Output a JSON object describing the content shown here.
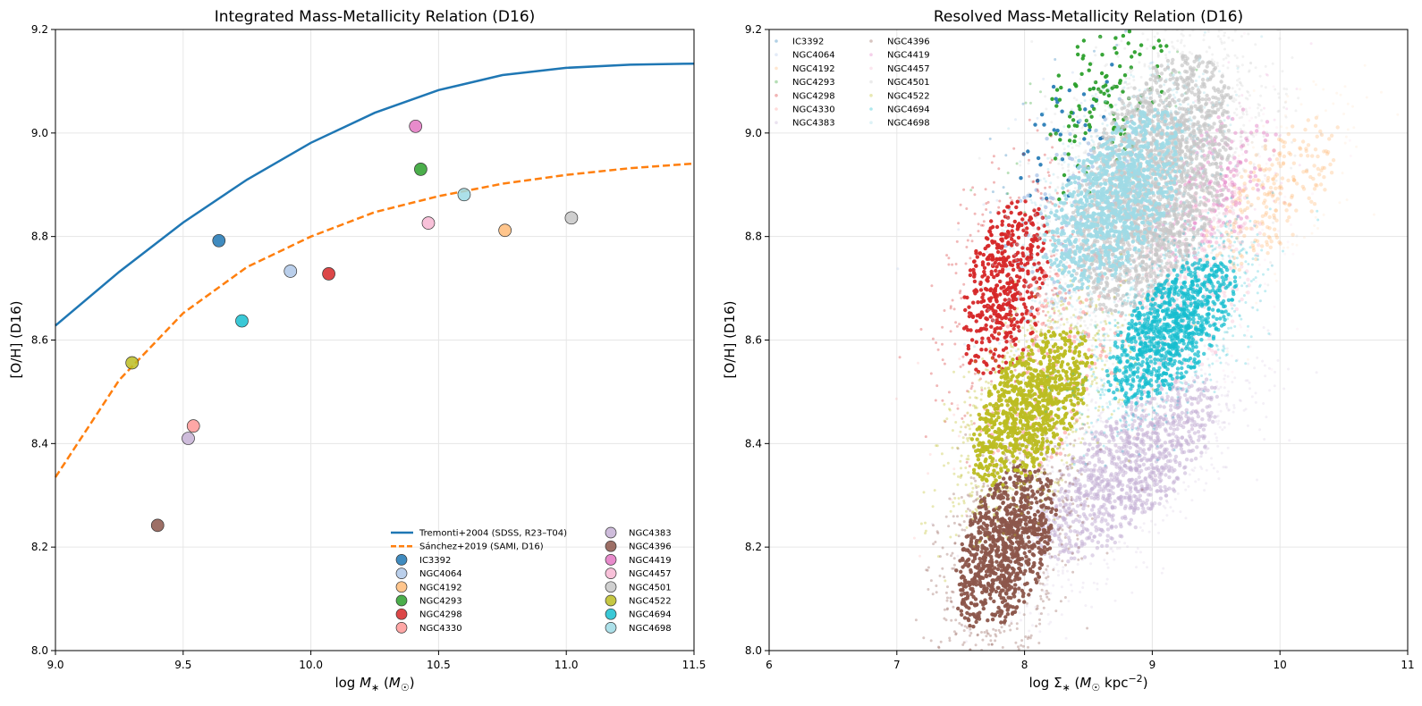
{
  "chart_data": [
    {
      "type": "scatter",
      "title": "Integrated Mass-Metallicity Relation (D16)",
      "xlabel": "log M* (M☉)",
      "ylabel": "[O/H] (D16)",
      "xlim": [
        9.0,
        11.5
      ],
      "ylim": [
        8.0,
        9.2
      ],
      "xticks": [
        "9.0",
        "9.5",
        "10.0",
        "10.5",
        "11.0",
        "11.5"
      ],
      "yticks": [
        "8.0",
        "8.2",
        "8.4",
        "8.6",
        "8.8",
        "9.0",
        "9.2"
      ],
      "grid": true,
      "legend_position": "lower-right",
      "lines": [
        {
          "name": "Tremonti+2004 (SDSS, R23–T04)",
          "style": "solid",
          "color": "#1f77b4",
          "x": [
            9.0,
            9.25,
            9.5,
            9.75,
            10.0,
            10.25,
            10.5,
            10.75,
            11.0,
            11.25,
            11.5
          ],
          "y": [
            8.628,
            8.732,
            8.827,
            8.91,
            8.981,
            9.039,
            9.083,
            9.112,
            9.126,
            9.132,
            9.134
          ]
        },
        {
          "name": "Sánchez+2019 (SAMI, D16)",
          "style": "dashed",
          "color": "#ff7f0e",
          "x": [
            9.0,
            9.25,
            9.5,
            9.75,
            10.0,
            10.25,
            10.5,
            10.75,
            11.0,
            11.25,
            11.5
          ],
          "y": [
            8.335,
            8.523,
            8.652,
            8.741,
            8.8,
            8.847,
            8.878,
            8.902,
            8.919,
            8.932,
            8.941
          ]
        }
      ],
      "points": [
        {
          "name": "IC3392",
          "x": 9.64,
          "y": 8.792,
          "color": "#1f77b4"
        },
        {
          "name": "NGC4064",
          "x": 9.92,
          "y": 8.733,
          "color": "#aec7e8"
        },
        {
          "name": "NGC4192",
          "x": 10.76,
          "y": 8.812,
          "color": "#ffbb78"
        },
        {
          "name": "NGC4293",
          "x": 10.43,
          "y": 8.93,
          "color": "#2ca02c"
        },
        {
          "name": "NGC4298",
          "x": 10.07,
          "y": 8.728,
          "color": "#d62728"
        },
        {
          "name": "NGC4330",
          "x": 9.54,
          "y": 8.434,
          "color": "#ff9896"
        },
        {
          "name": "NGC4383",
          "x": 9.52,
          "y": 8.41,
          "color": "#c5b0d5"
        },
        {
          "name": "NGC4396",
          "x": 9.4,
          "y": 8.242,
          "color": "#8c564b"
        },
        {
          "name": "NGC4419",
          "x": 10.41,
          "y": 9.013,
          "color": "#e377c2"
        },
        {
          "name": "NGC4457",
          "x": 10.46,
          "y": 8.826,
          "color": "#f7b6d2"
        },
        {
          "name": "NGC4501",
          "x": 11.02,
          "y": 8.836,
          "color": "#c7c7c7"
        },
        {
          "name": "NGC4522",
          "x": 9.3,
          "y": 8.556,
          "color": "#bcbd22"
        },
        {
          "name": "NGC4694",
          "x": 9.73,
          "y": 8.637,
          "color": "#17becf"
        },
        {
          "name": "NGC4698",
          "x": 10.6,
          "y": 8.881,
          "color": "#9edae5"
        }
      ]
    },
    {
      "type": "scatter",
      "title": "Resolved Mass-Metallicity Relation (D16)",
      "xlabel": "log Σ* (M☉ kpc⁻²)",
      "ylabel": "[O/H] (D16)",
      "xlim": [
        6,
        11
      ],
      "ylim": [
        8.0,
        9.2
      ],
      "xticks": [
        "6",
        "7",
        "8",
        "9",
        "10",
        "11"
      ],
      "yticks": [
        "8.0",
        "8.2",
        "8.4",
        "8.6",
        "8.8",
        "9.0",
        "9.2"
      ],
      "grid": true,
      "legend_position": "upper-left",
      "series": [
        {
          "name": "IC3392",
          "color": "#1f77b4",
          "cx": 8.35,
          "cy": 9.0,
          "sx": 0.3,
          "sy": 0.08,
          "n": 60,
          "strength": 0.9
        },
        {
          "name": "NGC4064",
          "color": "#aec7e8",
          "cx": 8.4,
          "cy": 8.85,
          "sx": 0.4,
          "sy": 0.12,
          "n": 150,
          "strength": 0.8
        },
        {
          "name": "NGC4192",
          "color": "#ffbb78",
          "cx": 9.95,
          "cy": 8.88,
          "sx": 0.35,
          "sy": 0.07,
          "n": 320,
          "strength": 0.35
        },
        {
          "name": "NGC4293",
          "color": "#2ca02c",
          "cx": 8.6,
          "cy": 9.05,
          "sx": 0.35,
          "sy": 0.1,
          "n": 160,
          "strength": 0.95
        },
        {
          "name": "NGC4298",
          "color": "#d62728",
          "cx": 7.85,
          "cy": 8.7,
          "sx": 0.22,
          "sy": 0.1,
          "n": 700,
          "strength": 0.95
        },
        {
          "name": "NGC4330",
          "color": "#ff9896",
          "cx": 8.2,
          "cy": 8.55,
          "sx": 0.4,
          "sy": 0.12,
          "n": 220,
          "strength": 0.6
        },
        {
          "name": "NGC4383",
          "color": "#c5b0d5",
          "cx": 8.8,
          "cy": 8.35,
          "sx": 0.45,
          "sy": 0.08,
          "n": 1400,
          "strength": 0.55
        },
        {
          "name": "NGC4396",
          "color": "#8c564b",
          "cx": 7.85,
          "cy": 8.2,
          "sx": 0.25,
          "sy": 0.09,
          "n": 1300,
          "strength": 0.95
        },
        {
          "name": "NGC4419",
          "color": "#e377c2",
          "cx": 9.5,
          "cy": 8.9,
          "sx": 0.3,
          "sy": 0.08,
          "n": 250,
          "strength": 0.45
        },
        {
          "name": "NGC4457",
          "color": "#f7b6d2",
          "cx": 9.3,
          "cy": 8.72,
          "sx": 0.35,
          "sy": 0.12,
          "n": 500,
          "strength": 0.35
        },
        {
          "name": "NGC4501",
          "color": "#c7c7c7",
          "cx": 9.0,
          "cy": 8.9,
          "sx": 0.4,
          "sy": 0.14,
          "n": 2800,
          "strength": 0.7
        },
        {
          "name": "NGC4522",
          "color": "#bcbd22",
          "cx": 8.05,
          "cy": 8.47,
          "sx": 0.3,
          "sy": 0.08,
          "n": 1300,
          "strength": 0.95
        },
        {
          "name": "NGC4694",
          "color": "#17becf",
          "cx": 9.15,
          "cy": 8.62,
          "sx": 0.32,
          "sy": 0.07,
          "n": 1300,
          "strength": 0.75
        },
        {
          "name": "NGC4698",
          "color": "#9edae5",
          "cx": 8.7,
          "cy": 8.87,
          "sx": 0.35,
          "sy": 0.09,
          "n": 1400,
          "strength": 0.9
        }
      ]
    }
  ]
}
